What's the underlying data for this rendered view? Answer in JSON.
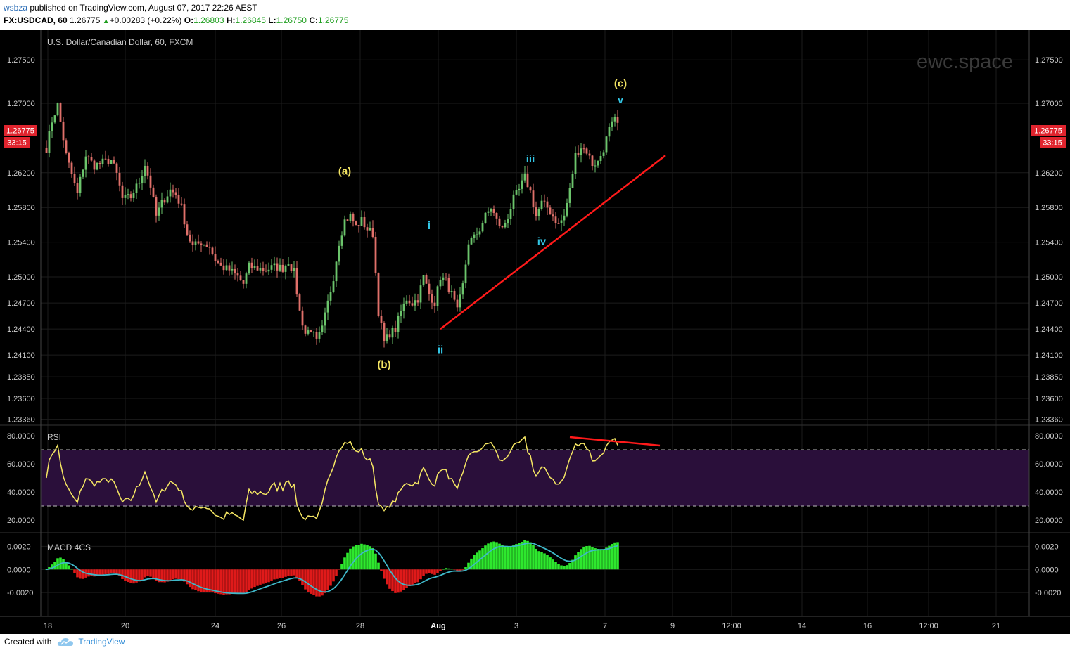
{
  "header": {
    "user": "wsbza",
    "published": "published on TradingView.com, August 07, 2017 22:26 AEST",
    "symbol": "FX:USDCAD, 60",
    "last": "1.26775",
    "change": "+0.00283 (+0.22%)",
    "o_label": "O:",
    "o_value": "1.26803",
    "h_label": "H:",
    "h_value": "1.26845",
    "l_label": "L:",
    "l_value": "1.26750",
    "c_label": "C:",
    "c_value": "1.26775"
  },
  "footer": {
    "created_with": "Created with",
    "brand": "TradingView"
  },
  "colors": {
    "background": "#000000",
    "up_candle": "#6bc46b",
    "down_candle": "#e0706a",
    "trendline": "#ff1a1a",
    "wave_primary": "#f5e663",
    "wave_minor": "#33c7e6",
    "rsi_line": "#f5e663",
    "rsi_band": "#2a0f3a",
    "macd_pos": "#2ee82e",
    "macd_neg": "#e01a1a",
    "macd_signal": "#3fb8c9",
    "price_tag": "#e0242e"
  },
  "chart_data": [
    {
      "type": "candlestick",
      "title": "U.S. Dollar/Canadian Dollar, 60, FXCM",
      "watermark": "ewc.space",
      "price_tick_labels": [
        "1.27500",
        "1.27000",
        "1.26200",
        "1.25800",
        "1.25400",
        "1.25000",
        "1.24700",
        "1.24400",
        "1.24100",
        "1.23850",
        "1.23600",
        "1.23360"
      ],
      "x_tick_labels": [
        "18",
        "20",
        "24",
        "26",
        "28",
        "Aug",
        "3",
        "7",
        "9",
        "12:00",
        "14",
        "16",
        "12:00",
        "21"
      ],
      "ylim": [
        1.233,
        1.2785
      ],
      "last_price_label": "1.26775",
      "countdown_label": "33:15",
      "waypoints": [
        {
          "t": 0,
          "p": 1.2648
        },
        {
          "t": 2,
          "p": 1.268
        },
        {
          "t": 4,
          "p": 1.2698
        },
        {
          "t": 7,
          "p": 1.264
        },
        {
          "t": 9,
          "p": 1.2618
        },
        {
          "t": 11,
          "p": 1.2595
        },
        {
          "t": 12,
          "p": 1.2612
        },
        {
          "t": 14,
          "p": 1.264
        },
        {
          "t": 17,
          "p": 1.2628
        },
        {
          "t": 20,
          "p": 1.2632
        },
        {
          "t": 23,
          "p": 1.2635
        },
        {
          "t": 25,
          "p": 1.2618
        },
        {
          "t": 27,
          "p": 1.259
        },
        {
          "t": 30,
          "p": 1.2592
        },
        {
          "t": 33,
          "p": 1.261
        },
        {
          "t": 35,
          "p": 1.263
        },
        {
          "t": 37,
          "p": 1.2605
        },
        {
          "t": 39,
          "p": 1.257
        },
        {
          "t": 41,
          "p": 1.2585
        },
        {
          "t": 44,
          "p": 1.26
        },
        {
          "t": 46,
          "p": 1.2595
        },
        {
          "t": 48,
          "p": 1.258
        },
        {
          "t": 50,
          "p": 1.255
        },
        {
          "t": 52,
          "p": 1.2535
        },
        {
          "t": 55,
          "p": 1.254
        },
        {
          "t": 58,
          "p": 1.2535
        },
        {
          "t": 60,
          "p": 1.252
        },
        {
          "t": 62,
          "p": 1.2512
        },
        {
          "t": 65,
          "p": 1.2508
        },
        {
          "t": 68,
          "p": 1.25
        },
        {
          "t": 70,
          "p": 1.2492
        },
        {
          "t": 72,
          "p": 1.2512
        },
        {
          "t": 75,
          "p": 1.251
        },
        {
          "t": 78,
          "p": 1.2508
        },
        {
          "t": 81,
          "p": 1.2512
        },
        {
          "t": 84,
          "p": 1.251
        },
        {
          "t": 86,
          "p": 1.2518
        },
        {
          "t": 88,
          "p": 1.2505
        },
        {
          "t": 90,
          "p": 1.246
        },
        {
          "t": 92,
          "p": 1.2435
        },
        {
          "t": 94,
          "p": 1.244
        },
        {
          "t": 96,
          "p": 1.2425
        },
        {
          "t": 98,
          "p": 1.244
        },
        {
          "t": 100,
          "p": 1.247
        },
        {
          "t": 102,
          "p": 1.25
        },
        {
          "t": 104,
          "p": 1.254
        },
        {
          "t": 106,
          "p": 1.2565
        },
        {
          "t": 108,
          "p": 1.257
        },
        {
          "t": 110,
          "p": 1.2558
        },
        {
          "t": 112,
          "p": 1.2565
        },
        {
          "t": 114,
          "p": 1.2555
        },
        {
          "t": 116,
          "p": 1.255
        },
        {
          "t": 118,
          "p": 1.246
        },
        {
          "t": 120,
          "p": 1.2425
        },
        {
          "t": 122,
          "p": 1.2435
        },
        {
          "t": 124,
          "p": 1.244
        },
        {
          "t": 126,
          "p": 1.246
        },
        {
          "t": 128,
          "p": 1.2475
        },
        {
          "t": 130,
          "p": 1.247
        },
        {
          "t": 132,
          "p": 1.2475
        },
        {
          "t": 134,
          "p": 1.25
        },
        {
          "t": 136,
          "p": 1.248
        },
        {
          "t": 138,
          "p": 1.247
        },
        {
          "t": 140,
          "p": 1.25
        },
        {
          "t": 142,
          "p": 1.2495
        },
        {
          "t": 144,
          "p": 1.248
        },
        {
          "t": 146,
          "p": 1.246
        },
        {
          "t": 148,
          "p": 1.249
        },
        {
          "t": 150,
          "p": 1.254
        },
        {
          "t": 152,
          "p": 1.2545
        },
        {
          "t": 154,
          "p": 1.2555
        },
        {
          "t": 156,
          "p": 1.257
        },
        {
          "t": 158,
          "p": 1.258
        },
        {
          "t": 160,
          "p": 1.2565
        },
        {
          "t": 162,
          "p": 1.2555
        },
        {
          "t": 164,
          "p": 1.257
        },
        {
          "t": 166,
          "p": 1.259
        },
        {
          "t": 168,
          "p": 1.26
        },
        {
          "t": 170,
          "p": 1.2615
        },
        {
          "t": 172,
          "p": 1.2598
        },
        {
          "t": 174,
          "p": 1.257
        },
        {
          "t": 176,
          "p": 1.2585
        },
        {
          "t": 178,
          "p": 1.258
        },
        {
          "t": 180,
          "p": 1.257
        },
        {
          "t": 182,
          "p": 1.256
        },
        {
          "t": 184,
          "p": 1.257
        },
        {
          "t": 186,
          "p": 1.26
        },
        {
          "t": 188,
          "p": 1.264
        },
        {
          "t": 190,
          "p": 1.265
        },
        {
          "t": 192,
          "p": 1.2645
        },
        {
          "t": 194,
          "p": 1.263
        },
        {
          "t": 196,
          "p": 1.2632
        },
        {
          "t": 198,
          "p": 1.2648
        },
        {
          "t": 200,
          "p": 1.267
        },
        {
          "t": 202,
          "p": 1.268
        },
        {
          "t": 203,
          "p": 1.26775
        }
      ],
      "annotations": [
        {
          "label": "(a)",
          "t": 106,
          "p": 1.2618,
          "color": "wave_primary"
        },
        {
          "label": "(b)",
          "t": 120,
          "p": 1.2395,
          "color": "wave_primary"
        },
        {
          "label": "(c)",
          "t": 204,
          "p": 1.2719,
          "color": "wave_primary"
        },
        {
          "label": "i",
          "t": 136,
          "p": 1.2555,
          "color": "wave_minor"
        },
        {
          "label": "ii",
          "t": 140,
          "p": 1.2412,
          "color": "wave_minor"
        },
        {
          "label": "iii",
          "t": 172,
          "p": 1.2632,
          "color": "wave_minor"
        },
        {
          "label": "iv",
          "t": 176,
          "p": 1.2537,
          "color": "wave_minor"
        },
        {
          "label": "v",
          "t": 204,
          "p": 1.27,
          "color": "wave_minor"
        }
      ],
      "trendline": {
        "t1": 140,
        "p1": 1.244,
        "t2": 220,
        "p2": 1.264
      }
    },
    {
      "type": "line",
      "title": "RSI",
      "tick_labels": [
        "80.0000",
        "60.0000",
        "40.0000",
        "20.0000"
      ],
      "ylim": [
        12,
        87
      ],
      "bands": [
        30,
        70
      ],
      "divergence_line": {
        "t1": 186,
        "v1": 79,
        "t2": 218,
        "v2": 73
      },
      "series": [
        {
          "values_from": "price",
          "period": 14
        }
      ]
    },
    {
      "type": "histogram",
      "title": "MACD 4CS",
      "tick_labels": [
        "0.0020",
        "0.0000",
        "-0.0020"
      ],
      "ylim": [
        -0.004,
        0.003
      ],
      "series": [
        {
          "values_from": "price",
          "fast": 12,
          "slow": 26,
          "signal": 9
        }
      ]
    }
  ]
}
